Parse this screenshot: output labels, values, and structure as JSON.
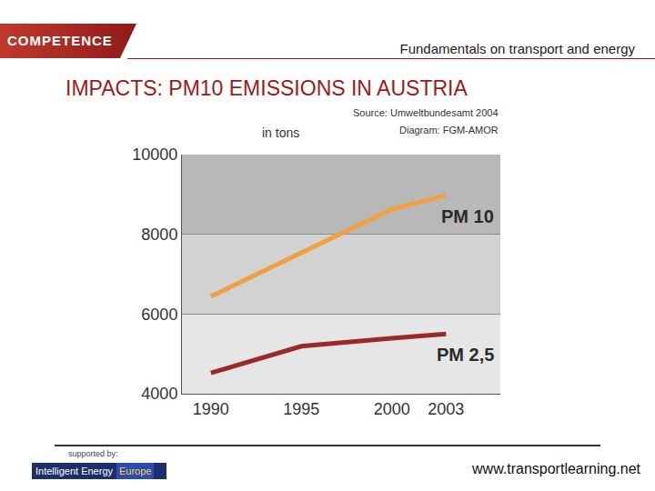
{
  "slide": {
    "logo": "COMPETENCE",
    "header": "Fundamentals on transport and energy",
    "supported_by": "supported by:",
    "sponsor": [
      "Intelligent Energy",
      "Europe"
    ],
    "url": "www.transportlearning.net"
  },
  "chart_data": {
    "type": "line",
    "title": "IMPACTS: PM10 EMISSIONS IN AUSTRIA",
    "y_label": "in tons",
    "annotations": [
      "Source: Umweltbundesamt 2004",
      "Diagram: FGM-AMOR"
    ],
    "x": [
      1990,
      1995,
      2000,
      2003
    ],
    "series": [
      {
        "name": "PM 10",
        "color": "#f0a040",
        "values": [
          6440,
          7540,
          8630,
          8970
        ]
      },
      {
        "name": "PM 2,5",
        "color": "#9a2a2a",
        "values": [
          4520,
          5190,
          5390,
          5500
        ]
      }
    ],
    "xlim": [
      1988.4,
      2006
    ],
    "xticks": [
      1990,
      1995,
      2000,
      2003
    ],
    "ylim": [
      4000,
      10000
    ],
    "yticks": [
      4000,
      6000,
      8000,
      10000
    ],
    "grid": true
  }
}
